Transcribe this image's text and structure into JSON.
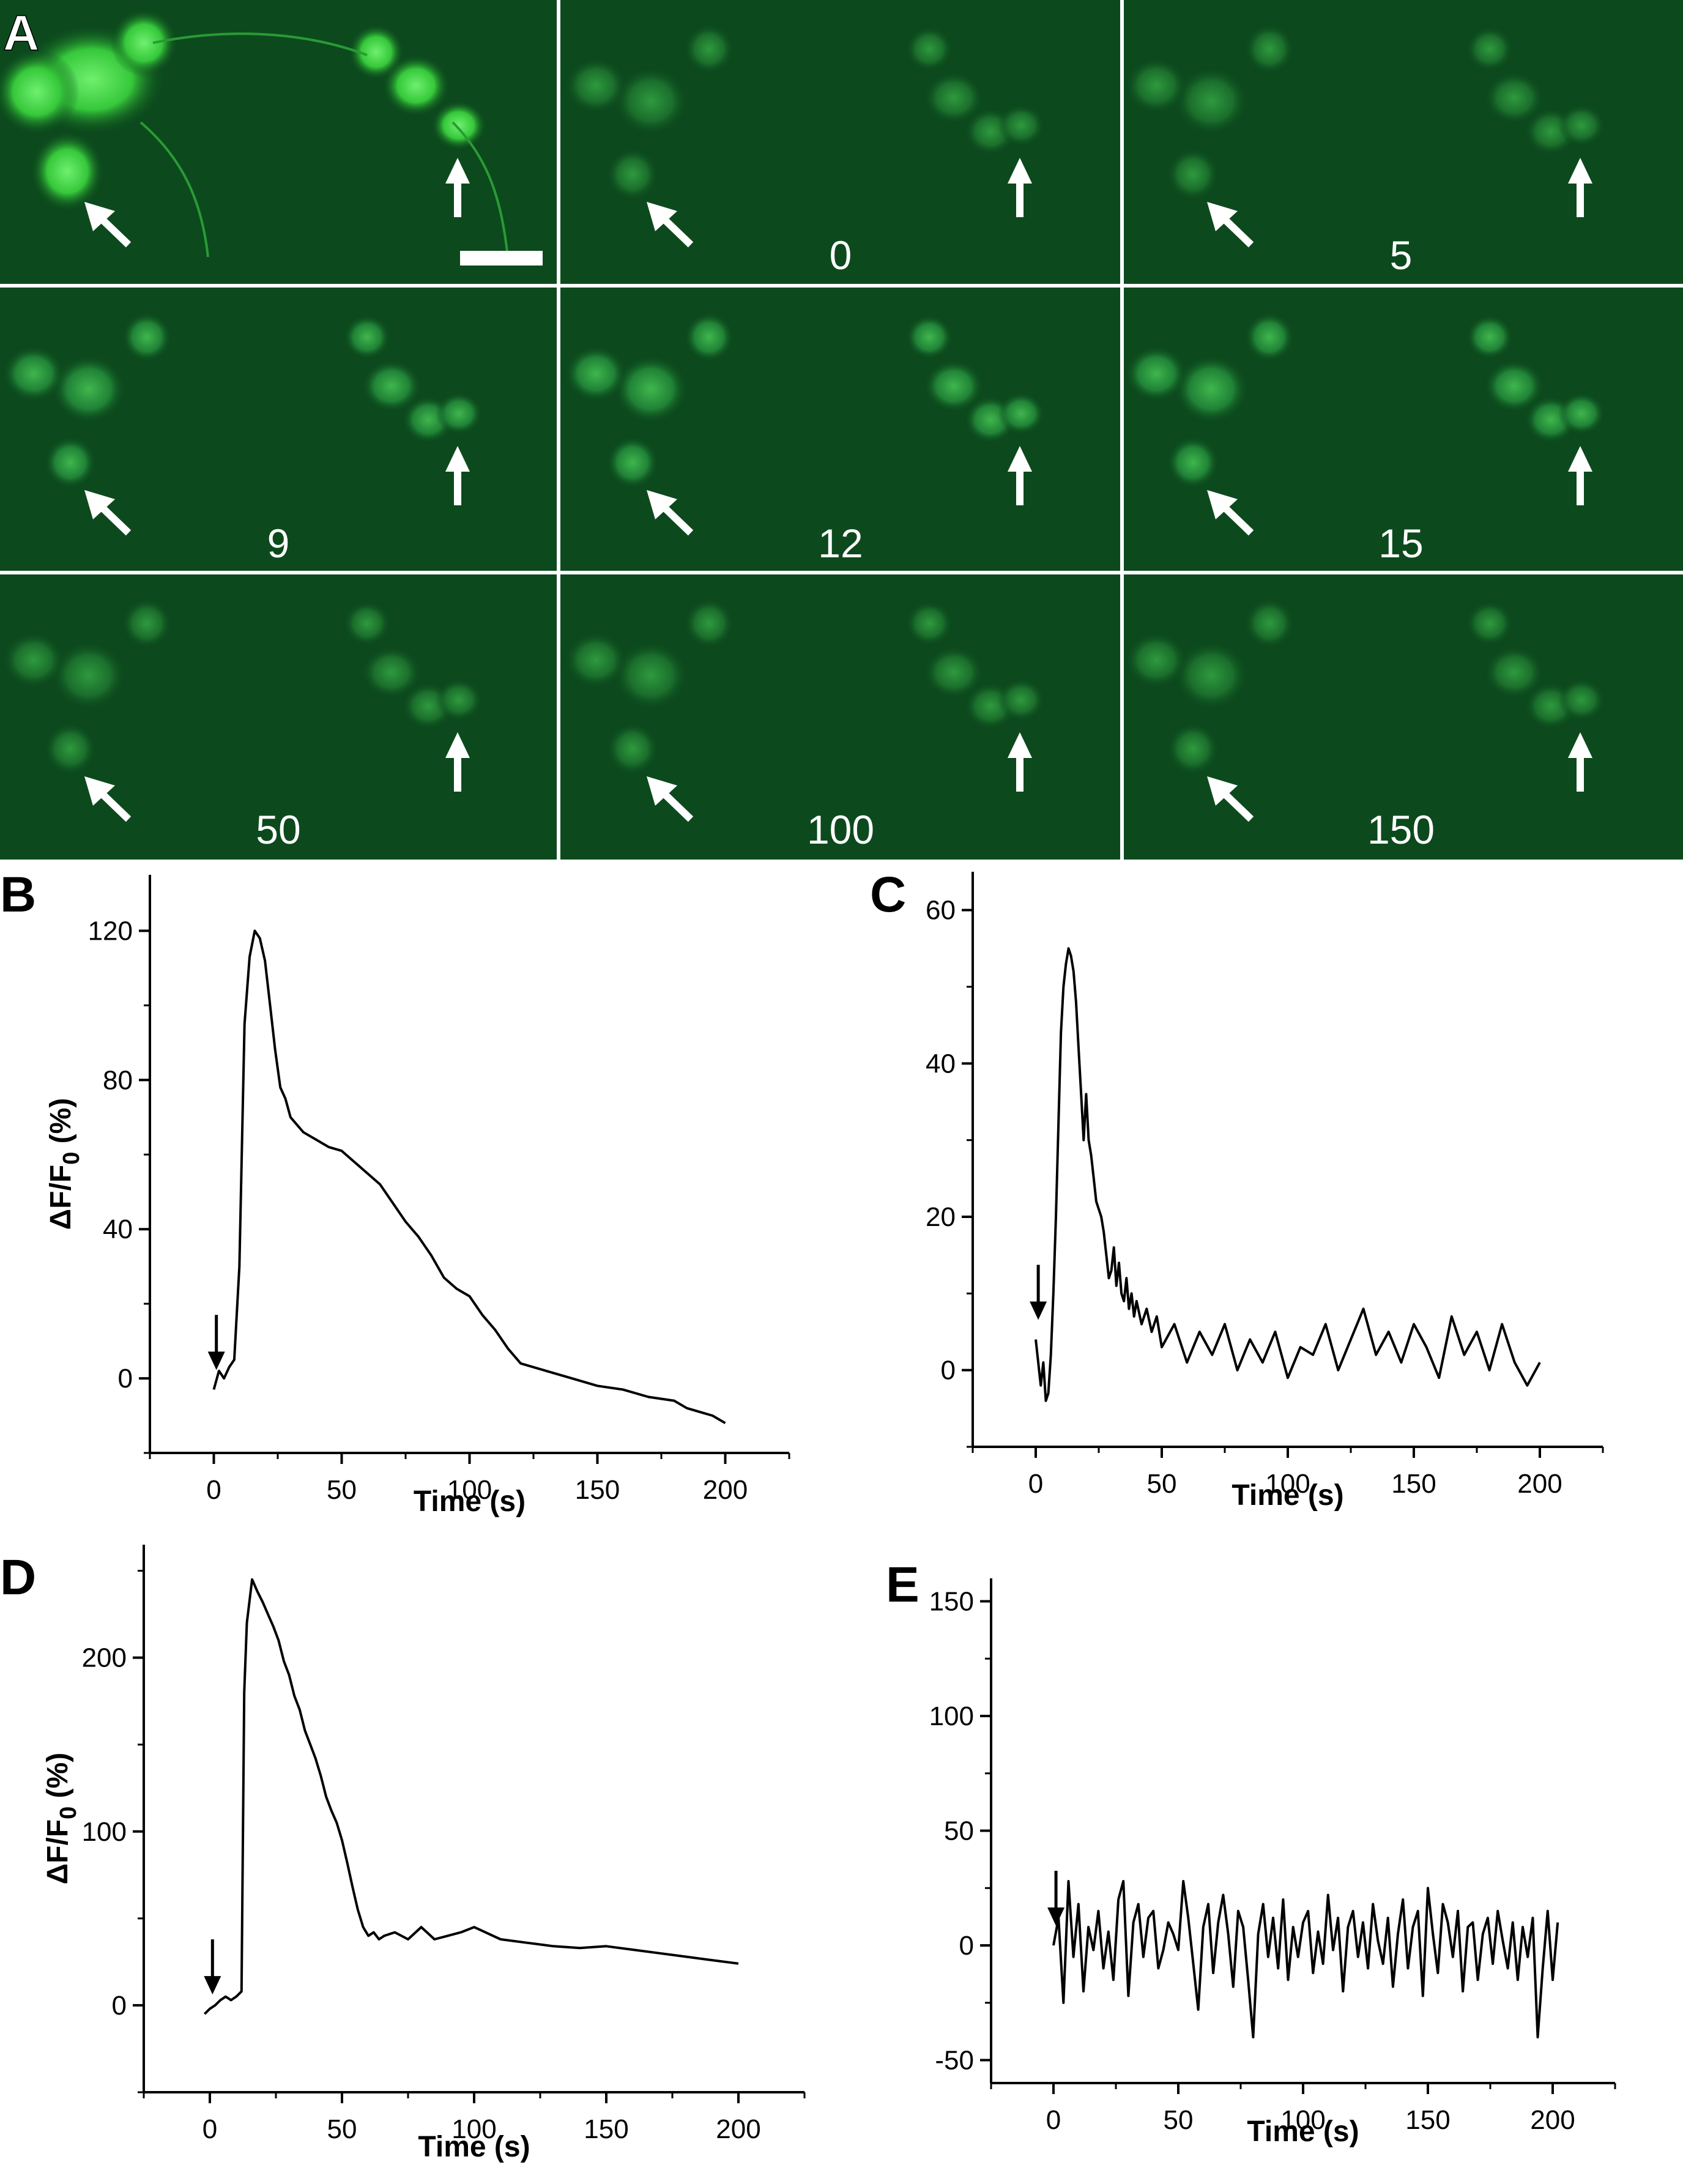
{
  "panels": {
    "A": {
      "letter": "A",
      "frame_labels": [
        "",
        "0",
        "5",
        "9",
        "12",
        "15",
        "50",
        "100",
        "150"
      ],
      "colors": {
        "background": "#0c4a1d",
        "bright_cell": "#3fdc3f",
        "dim_cell": "#1d7a31",
        "grid_line": "#ffffff",
        "arrow": "#ffffff"
      }
    },
    "B": {
      "letter": "B"
    },
    "C": {
      "letter": "C"
    },
    "D": {
      "letter": "D"
    },
    "E": {
      "letter": "E"
    }
  },
  "chart_data": [
    {
      "panel": "B",
      "type": "line",
      "xlabel": "Time (s)",
      "ylabel": "ΔF/F0 (%)",
      "ylabel_main": "ΔF/F",
      "ylabel_sub": "0",
      "ylabel_tail": " (%)",
      "xlim": [
        -25,
        225
      ],
      "ylim": [
        -20,
        135
      ],
      "xticks": [
        0,
        50,
        100,
        150,
        200
      ],
      "yticks": [
        0,
        40,
        80,
        120
      ],
      "stimulus_arrow_x": 1,
      "series": [
        {
          "x": [
            0,
            2,
            4,
            6,
            8,
            10,
            12,
            14,
            16,
            18,
            20,
            22,
            24,
            26,
            28,
            30,
            35,
            40,
            45,
            50,
            55,
            60,
            65,
            70,
            75,
            80,
            85,
            90,
            95,
            100,
            105,
            110,
            115,
            120,
            130,
            140,
            150,
            160,
            170,
            180,
            185,
            190,
            195,
            200
          ],
          "y": [
            -3,
            2,
            0,
            3,
            5,
            30,
            95,
            113,
            120,
            118,
            112,
            100,
            88,
            78,
            75,
            70,
            66,
            64,
            62,
            61,
            58,
            55,
            52,
            47,
            42,
            38,
            33,
            27,
            24,
            22,
            17,
            13,
            8,
            4,
            2,
            0,
            -2,
            -3,
            -5,
            -6,
            -8,
            -9,
            -10,
            -12
          ]
        }
      ]
    },
    {
      "panel": "C",
      "type": "line",
      "xlabel": "Time (s)",
      "ylabel": "",
      "xlim": [
        -25,
        225
      ],
      "ylim": [
        -10,
        65
      ],
      "xticks": [
        0,
        50,
        100,
        150,
        200
      ],
      "yticks": [
        0,
        20,
        40,
        60
      ],
      "stimulus_arrow_x": 1,
      "series": [
        {
          "x": [
            0,
            2,
            3,
            4,
            5,
            6,
            7,
            8,
            9,
            10,
            11,
            12,
            13,
            14,
            15,
            16,
            17,
            18,
            19,
            20,
            21,
            22,
            23,
            24,
            25,
            26,
            27,
            28,
            29,
            30,
            31,
            32,
            33,
            34,
            35,
            36,
            37,
            38,
            39,
            40,
            42,
            44,
            46,
            48,
            50,
            55,
            60,
            65,
            70,
            75,
            80,
            85,
            90,
            95,
            100,
            105,
            110,
            115,
            120,
            125,
            130,
            135,
            140,
            145,
            150,
            155,
            160,
            165,
            170,
            175,
            180,
            185,
            190,
            195,
            200
          ],
          "y": [
            4,
            -2,
            1,
            -4,
            -3,
            2,
            10,
            20,
            32,
            44,
            50,
            53,
            55,
            54,
            52,
            48,
            42,
            36,
            30,
            36,
            30,
            28,
            25,
            22,
            21,
            20,
            18,
            15,
            12,
            13,
            16,
            11,
            14,
            10,
            9,
            12,
            8,
            10,
            7,
            9,
            6,
            8,
            5,
            7,
            3,
            6,
            1,
            5,
            2,
            6,
            0,
            4,
            1,
            5,
            -1,
            3,
            2,
            6,
            0,
            4,
            8,
            2,
            5,
            1,
            6,
            3,
            -1,
            7,
            2,
            5,
            0,
            6,
            1,
            -2,
            1
          ]
        }
      ]
    },
    {
      "panel": "D",
      "type": "line",
      "xlabel": "Time (s)",
      "ylabel": "ΔF/F0 (%)",
      "ylabel_main": "ΔF/F",
      "ylabel_sub": "0",
      "ylabel_tail": " (%)",
      "xlim": [
        -25,
        225
      ],
      "ylim": [
        -50,
        265
      ],
      "xticks": [
        0,
        50,
        100,
        150,
        200
      ],
      "yticks": [
        0,
        100,
        200
      ],
      "stimulus_arrow_x": 1,
      "series": [
        {
          "x": [
            -2,
            0,
            2,
            4,
            6,
            8,
            10,
            12,
            13,
            14,
            16,
            18,
            20,
            22,
            24,
            26,
            28,
            30,
            32,
            34,
            36,
            38,
            40,
            42,
            44,
            46,
            48,
            50,
            52,
            54,
            56,
            58,
            60,
            62,
            64,
            66,
            70,
            75,
            80,
            85,
            90,
            95,
            100,
            110,
            120,
            130,
            140,
            150,
            160,
            170,
            180,
            190,
            200
          ],
          "y": [
            -5,
            -2,
            0,
            3,
            5,
            3,
            5,
            8,
            180,
            220,
            245,
            238,
            232,
            225,
            218,
            210,
            198,
            190,
            178,
            170,
            158,
            150,
            142,
            132,
            120,
            112,
            105,
            95,
            82,
            68,
            55,
            45,
            40,
            42,
            38,
            40,
            42,
            38,
            45,
            38,
            40,
            42,
            45,
            38,
            36,
            34,
            33,
            34,
            32,
            30,
            28,
            26,
            24
          ]
        }
      ]
    },
    {
      "panel": "E",
      "type": "line",
      "xlabel": "Time (s)",
      "ylabel": "",
      "xlim": [
        -25,
        225
      ],
      "ylim": [
        -60,
        160
      ],
      "xticks": [
        0,
        50,
        100,
        150,
        200
      ],
      "yticks": [
        -50,
        0,
        50,
        100,
        150
      ],
      "stimulus_arrow_x": 1,
      "series": [
        {
          "x": [
            0,
            2,
            4,
            6,
            8,
            10,
            12,
            14,
            16,
            18,
            20,
            22,
            24,
            26,
            28,
            30,
            32,
            34,
            36,
            38,
            40,
            42,
            44,
            46,
            48,
            50,
            52,
            54,
            56,
            58,
            60,
            62,
            64,
            66,
            68,
            70,
            72,
            74,
            76,
            78,
            80,
            82,
            84,
            86,
            88,
            90,
            92,
            94,
            96,
            98,
            100,
            102,
            104,
            106,
            108,
            110,
            112,
            114,
            116,
            118,
            120,
            122,
            124,
            126,
            128,
            130,
            132,
            134,
            136,
            138,
            140,
            142,
            144,
            146,
            148,
            150,
            152,
            154,
            156,
            158,
            160,
            162,
            164,
            166,
            168,
            170,
            172,
            174,
            176,
            178,
            180,
            182,
            184,
            186,
            188,
            190,
            192,
            194,
            196,
            198,
            200,
            202
          ],
          "y": [
            0,
            12,
            -25,
            28,
            -5,
            18,
            -20,
            8,
            -2,
            15,
            -10,
            6,
            -15,
            20,
            28,
            -22,
            10,
            18,
            -5,
            12,
            15,
            -10,
            -2,
            10,
            5,
            -2,
            28,
            12,
            -8,
            -28,
            8,
            18,
            -12,
            10,
            22,
            5,
            -18,
            15,
            8,
            -15,
            -40,
            5,
            18,
            -5,
            12,
            -10,
            20,
            -15,
            8,
            -5,
            10,
            15,
            -12,
            6,
            -8,
            22,
            -2,
            12,
            -20,
            8,
            15,
            -5,
            10,
            -10,
            18,
            2,
            -8,
            12,
            -18,
            5,
            20,
            -10,
            8,
            15,
            -22,
            25,
            5,
            -12,
            18,
            10,
            -5,
            15,
            -20,
            8,
            10,
            -15,
            5,
            12,
            -8,
            15,
            2,
            -10,
            10,
            -15,
            8,
            -5,
            12,
            -40,
            -10,
            15,
            -15,
            10
          ]
        }
      ]
    }
  ]
}
